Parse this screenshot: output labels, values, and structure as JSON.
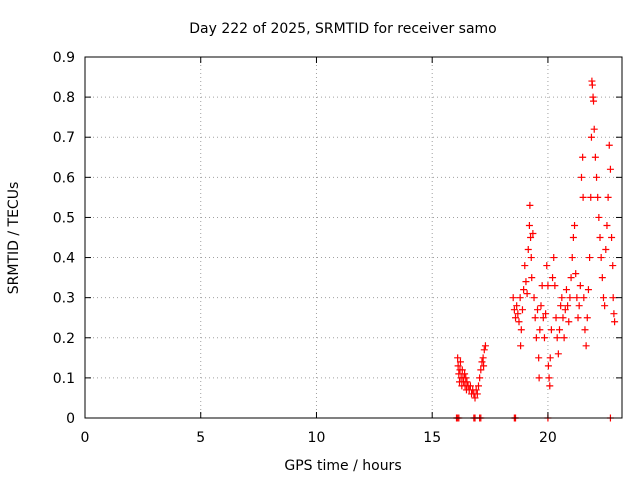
{
  "chart_data": {
    "type": "scatter",
    "title": "Day 222 of 2025, SRMTID for receiver samo",
    "xlabel": "GPS time / hours",
    "ylabel": "SRMTID / TECUs",
    "xlim": [
      0,
      23.2
    ],
    "ylim": [
      0,
      0.9
    ],
    "xticks": [
      0,
      5,
      10,
      15,
      20
    ],
    "yticks": [
      0,
      0.1,
      0.2,
      0.3,
      0.4,
      0.5,
      0.6,
      0.7,
      0.8,
      0.9
    ],
    "x_tick_labels": [
      "0",
      "5",
      "10",
      "15",
      "20"
    ],
    "y_tick_labels": [
      "0",
      "0.1",
      "0.2",
      "0.3",
      "0.4",
      "0.5",
      "0.6",
      "0.7",
      "0.8",
      "0.9"
    ],
    "grid": true,
    "marker": "plus",
    "color": "#ff0000",
    "series": [
      {
        "name": "SRMTID",
        "points": [
          [
            16.05,
            0
          ],
          [
            16.1,
            0
          ],
          [
            16.15,
            0
          ],
          [
            16.8,
            0
          ],
          [
            16.85,
            0
          ],
          [
            17.05,
            0
          ],
          [
            17.1,
            0
          ],
          [
            18.55,
            0
          ],
          [
            18.6,
            0
          ],
          [
            20.0,
            0
          ],
          [
            22.7,
            0
          ],
          [
            16.1,
            0.15
          ],
          [
            16.12,
            0.13
          ],
          [
            16.15,
            0.11
          ],
          [
            16.18,
            0.09
          ],
          [
            16.2,
            0.12
          ],
          [
            16.22,
            0.14
          ],
          [
            16.25,
            0.1
          ],
          [
            16.28,
            0.08
          ],
          [
            16.3,
            0.12
          ],
          [
            16.33,
            0.1
          ],
          [
            16.36,
            0.09
          ],
          [
            16.4,
            0.11
          ],
          [
            16.42,
            0.08
          ],
          [
            16.45,
            0.1
          ],
          [
            16.48,
            0.07
          ],
          [
            16.5,
            0.09
          ],
          [
            16.55,
            0.08
          ],
          [
            16.6,
            0.07
          ],
          [
            16.65,
            0.08
          ],
          [
            16.7,
            0.06
          ],
          [
            16.75,
            0.07
          ],
          [
            16.8,
            0.06
          ],
          [
            16.85,
            0.05
          ],
          [
            16.9,
            0.07
          ],
          [
            16.95,
            0.06
          ],
          [
            17.0,
            0.08
          ],
          [
            17.05,
            0.1
          ],
          [
            17.1,
            0.12
          ],
          [
            17.15,
            0.14
          ],
          [
            17.2,
            0.15
          ],
          [
            17.25,
            0.17
          ],
          [
            17.3,
            0.18
          ],
          [
            17.22,
            0.13
          ],
          [
            18.5,
            0.3
          ],
          [
            18.55,
            0.27
          ],
          [
            18.6,
            0.25
          ],
          [
            18.65,
            0.28
          ],
          [
            18.7,
            0.26
          ],
          [
            18.75,
            0.24
          ],
          [
            18.8,
            0.3
          ],
          [
            18.82,
            0.18
          ],
          [
            18.85,
            0.22
          ],
          [
            18.9,
            0.27
          ],
          [
            18.95,
            0.32
          ],
          [
            19.0,
            0.38
          ],
          [
            19.05,
            0.34
          ],
          [
            19.1,
            0.31
          ],
          [
            19.15,
            0.42
          ],
          [
            19.2,
            0.48
          ],
          [
            19.22,
            0.53
          ],
          [
            19.25,
            0.45
          ],
          [
            19.28,
            0.4
          ],
          [
            19.3,
            0.35
          ],
          [
            19.35,
            0.46
          ],
          [
            19.4,
            0.3
          ],
          [
            19.45,
            0.25
          ],
          [
            19.5,
            0.2
          ],
          [
            19.55,
            0.27
          ],
          [
            19.6,
            0.15
          ],
          [
            19.62,
            0.1
          ],
          [
            19.65,
            0.22
          ],
          [
            19.7,
            0.28
          ],
          [
            19.75,
            0.33
          ],
          [
            19.8,
            0.25
          ],
          [
            19.85,
            0.2
          ],
          [
            19.9,
            0.26
          ],
          [
            19.95,
            0.38
          ],
          [
            20.0,
            0.33
          ],
          [
            20.02,
            0.13
          ],
          [
            20.05,
            0.1
          ],
          [
            20.08,
            0.08
          ],
          [
            20.1,
            0.15
          ],
          [
            20.15,
            0.22
          ],
          [
            20.2,
            0.35
          ],
          [
            20.25,
            0.4
          ],
          [
            20.3,
            0.33
          ],
          [
            20.35,
            0.25
          ],
          [
            20.4,
            0.2
          ],
          [
            20.45,
            0.16
          ],
          [
            20.5,
            0.22
          ],
          [
            20.55,
            0.28
          ],
          [
            20.6,
            0.3
          ],
          [
            20.65,
            0.25
          ],
          [
            20.7,
            0.2
          ],
          [
            20.75,
            0.27
          ],
          [
            20.8,
            0.32
          ],
          [
            20.85,
            0.28
          ],
          [
            20.9,
            0.24
          ],
          [
            20.95,
            0.3
          ],
          [
            21.0,
            0.35
          ],
          [
            21.05,
            0.4
          ],
          [
            21.1,
            0.45
          ],
          [
            21.15,
            0.48
          ],
          [
            21.2,
            0.36
          ],
          [
            21.25,
            0.3
          ],
          [
            21.3,
            0.25
          ],
          [
            21.35,
            0.28
          ],
          [
            21.4,
            0.33
          ],
          [
            21.45,
            0.6
          ],
          [
            21.5,
            0.65
          ],
          [
            21.52,
            0.55
          ],
          [
            21.55,
            0.3
          ],
          [
            21.6,
            0.22
          ],
          [
            21.65,
            0.18
          ],
          [
            21.7,
            0.25
          ],
          [
            21.75,
            0.32
          ],
          [
            21.8,
            0.4
          ],
          [
            21.85,
            0.55
          ],
          [
            21.88,
            0.7
          ],
          [
            21.9,
            0.84
          ],
          [
            21.92,
            0.83
          ],
          [
            21.95,
            0.8
          ],
          [
            21.97,
            0.79
          ],
          [
            22.0,
            0.72
          ],
          [
            22.05,
            0.65
          ],
          [
            22.1,
            0.6
          ],
          [
            22.15,
            0.55
          ],
          [
            22.2,
            0.5
          ],
          [
            22.25,
            0.45
          ],
          [
            22.3,
            0.4
          ],
          [
            22.35,
            0.35
          ],
          [
            22.4,
            0.3
          ],
          [
            22.45,
            0.28
          ],
          [
            22.5,
            0.42
          ],
          [
            22.55,
            0.48
          ],
          [
            22.6,
            0.55
          ],
          [
            22.65,
            0.68
          ],
          [
            22.7,
            0.62
          ],
          [
            22.75,
            0.45
          ],
          [
            22.8,
            0.38
          ],
          [
            22.82,
            0.3
          ],
          [
            22.85,
            0.26
          ],
          [
            22.88,
            0.24
          ]
        ]
      }
    ]
  }
}
